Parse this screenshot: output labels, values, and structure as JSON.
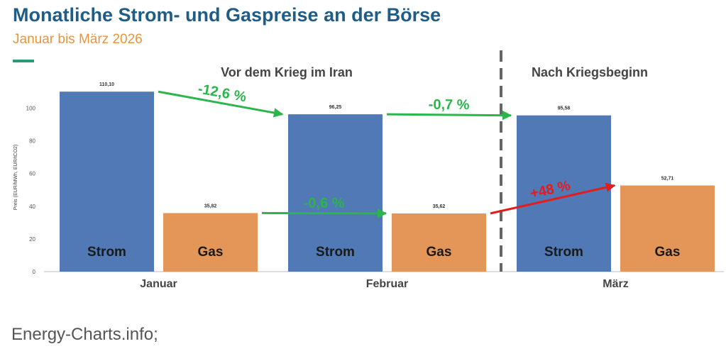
{
  "header": {
    "title": "Monatliche Strom- und Gaspreise an der Börse",
    "subtitle": "Januar bis März 2026"
  },
  "source": "Energy-Charts.info;",
  "colors": {
    "strom": "#5079b5",
    "gas": "#e39657",
    "arrow_green": "#2cb54a",
    "arrow_red": "#e31d1d",
    "title": "#1f5d86",
    "subtitle": "#e8943e"
  },
  "chart_data": {
    "type": "bar",
    "ylabel": "Preis (EUR/MWh, EUR/tCO2)",
    "ylim": [
      0,
      115
    ],
    "yticks": [
      0,
      20,
      40,
      60,
      80,
      100
    ],
    "categories": [
      "Januar",
      "Februar",
      "März"
    ],
    "series": [
      {
        "name": "Strom",
        "values": [
          110.1,
          96.25,
          95.58
        ],
        "value_labels": [
          "110,10",
          "96,25",
          "95,58"
        ]
      },
      {
        "name": "Gas",
        "values": [
          35.82,
          35.62,
          52.71
        ],
        "value_labels": [
          "35,82",
          "35,62",
          "52,71"
        ]
      }
    ],
    "sections": [
      "Vor dem Krieg im Iran",
      "Nach Kriegsbeginn"
    ],
    "annotations": [
      {
        "text": "-12,6 %",
        "series": "Strom",
        "from": "Januar",
        "to": "Februar",
        "color": "green"
      },
      {
        "text": "-0,7 %",
        "series": "Strom",
        "from": "Februar",
        "to": "März",
        "color": "green"
      },
      {
        "text": "-0,6 %",
        "series": "Gas",
        "from": "Januar",
        "to": "Februar",
        "color": "green"
      },
      {
        "text": "+48 %",
        "series": "Gas",
        "from": "Februar",
        "to": "März",
        "color": "red"
      }
    ]
  }
}
